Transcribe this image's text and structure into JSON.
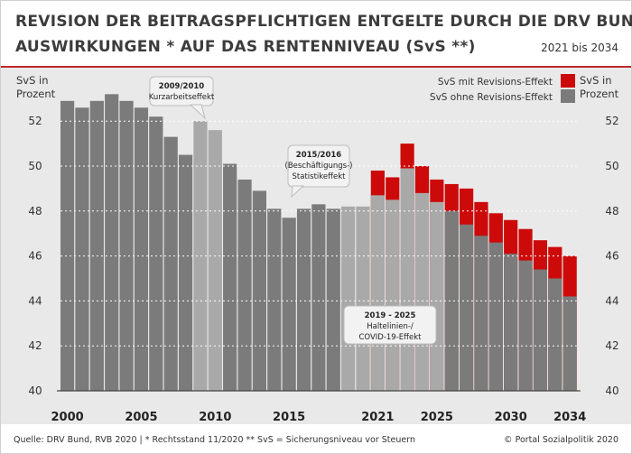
{
  "header": {
    "title_line1": "REVISION DER BEITRAGSPFLICHTIGEN ENTGELTE DURCH DIE DRV BUND",
    "title_line2": "AUSWIRKUNGEN * AUF DAS RENTENNIVEAU (SvS **)",
    "subtitle": "2021 bis 2034"
  },
  "footer": {
    "source": "Quelle: DRV Bund, RVB 2020 | * Rechtsstand 11/2020 ** SvS = Sicherungsniveau vor Steuern",
    "copyright": "© Portal Sozialpolitik 2020"
  },
  "colors": {
    "dark_bar": "#7b7b7b",
    "light_bar": "#a9a9a9",
    "revision": "#cc0a0a",
    "grid": "#ffffff",
    "plot_bg": "#e9e9e9",
    "axis_text": "#333333"
  },
  "chart_data": {
    "type": "bar",
    "title": "Revision der beitragspflichtigen Entgelte durch die DRV Bund – Auswirkungen auf das Rentenniveau (SvS)",
    "ylabel_left": "SvS in Prozent",
    "ylabel_right": "SvS in Prozent",
    "xlabel": "",
    "ylim": [
      40,
      53.5
    ],
    "yticks": [
      40,
      42,
      44,
      46,
      48,
      50,
      52
    ],
    "xtick_labels": [
      "2000",
      "2005",
      "2010",
      "2015",
      "2021",
      "2025",
      "2030",
      "2034"
    ],
    "grid": true,
    "legend": [
      {
        "label": "SvS mit Revisions-Effekt",
        "color": "#cc0a0a"
      },
      {
        "label": "SvS ohne Revisions-Effekt",
        "color": "#7b7b7b"
      }
    ],
    "categories": [
      "2000",
      "2001",
      "2002",
      "2003",
      "2004",
      "2005",
      "2006",
      "2007",
      "2008",
      "2009",
      "2010",
      "2011",
      "2012",
      "2013",
      "2014",
      "2015",
      "2016",
      "2017",
      "2018",
      "2019",
      "2020",
      "2021",
      "2022",
      "2023",
      "2024",
      "2025",
      "2026",
      "2027",
      "2028",
      "2029",
      "2030",
      "2031",
      "2032",
      "2033",
      "2034"
    ],
    "series": [
      {
        "name": "SvS ohne Revisions-Effekt",
        "values": [
          52.9,
          52.6,
          52.9,
          53.2,
          52.9,
          52.6,
          52.2,
          51.3,
          50.5,
          52.0,
          51.6,
          50.1,
          49.4,
          48.9,
          48.1,
          47.7,
          48.1,
          48.3,
          48.1,
          48.2,
          48.2,
          48.7,
          48.5,
          49.9,
          48.8,
          48.4,
          48.0,
          47.4,
          46.9,
          46.6,
          46.1,
          45.8,
          45.4,
          45.0,
          44.2
        ]
      },
      {
        "name": "SvS mit Revisions-Effekt",
        "values": [
          null,
          null,
          null,
          null,
          null,
          null,
          null,
          null,
          null,
          null,
          null,
          null,
          null,
          null,
          null,
          null,
          null,
          null,
          null,
          null,
          null,
          49.8,
          49.5,
          51.0,
          50.0,
          49.4,
          49.2,
          49.0,
          48.4,
          47.9,
          47.6,
          47.2,
          46.7,
          46.4,
          46.0
        ]
      }
    ],
    "highlight_light_years": [
      "2009",
      "2010",
      "2019",
      "2020",
      "2021",
      "2022",
      "2023",
      "2024",
      "2025"
    ],
    "annotations": [
      {
        "lines": [
          "2009/2010",
          "Kurzarbeitseffekt"
        ]
      },
      {
        "lines": [
          "2015/2016",
          "(Beschäftigungs-)",
          "Statistikeffekt"
        ]
      },
      {
        "lines": [
          "2019 - 2025",
          "Haltelinien-/",
          "COVID-19-Effekt"
        ]
      }
    ]
  }
}
